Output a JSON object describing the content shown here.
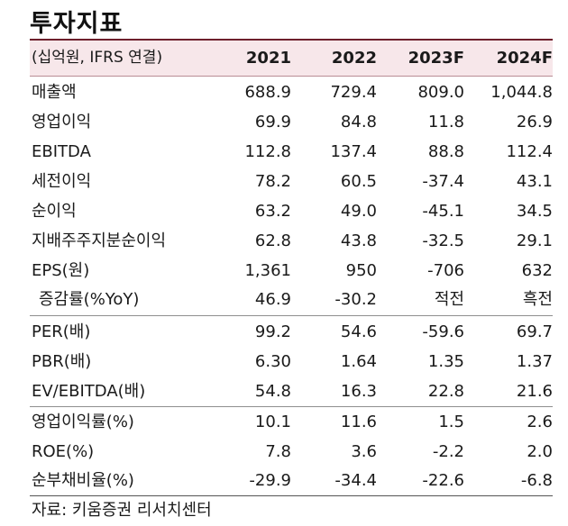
{
  "title": "투자지표",
  "colors": {
    "title_rule": "#6e1f2c",
    "header_background": "#f7e7ea"
  },
  "header": {
    "unit": "(십억원, IFRS 연결)",
    "years": [
      "2021",
      "2022",
      "2023F",
      "2024F"
    ]
  },
  "rows": [
    {
      "label": "매출액",
      "values": [
        "688.9",
        "729.4",
        "809.0",
        "1,044.8"
      ]
    },
    {
      "label": "영업이익",
      "values": [
        "69.9",
        "84.8",
        "11.8",
        "26.9"
      ]
    },
    {
      "label": "EBITDA",
      "values": [
        "112.8",
        "137.4",
        "88.8",
        "112.4"
      ]
    },
    {
      "label": "세전이익",
      "values": [
        "78.2",
        "60.5",
        "-37.4",
        "43.1"
      ]
    },
    {
      "label": "순이익",
      "values": [
        "63.2",
        "49.0",
        "-45.1",
        "34.5"
      ]
    },
    {
      "label": "지배주주지분순이익",
      "values": [
        "62.8",
        "43.8",
        "-32.5",
        "29.1"
      ]
    },
    {
      "label": "EPS(원)",
      "values": [
        "1,361",
        "950",
        "-706",
        "632"
      ]
    },
    {
      "label": "증감률(%YoY)",
      "values": [
        "46.9",
        "-30.2",
        "적전",
        "흑전"
      ]
    },
    {
      "label": "PER(배)",
      "values": [
        "99.2",
        "54.6",
        "-59.6",
        "69.7"
      ]
    },
    {
      "label": "PBR(배)",
      "values": [
        "6.30",
        "1.64",
        "1.35",
        "1.37"
      ]
    },
    {
      "label": "EV/EBITDA(배)",
      "values": [
        "54.8",
        "16.3",
        "22.8",
        "21.6"
      ]
    },
    {
      "label": "영업이익률(%)",
      "values": [
        "10.1",
        "11.6",
        "1.5",
        "2.6"
      ]
    },
    {
      "label": "ROE(%)",
      "values": [
        "7.8",
        "3.6",
        "-2.2",
        "2.0"
      ]
    },
    {
      "label": "순부채비율(%)",
      "values": [
        "-29.9",
        "-34.4",
        "-22.6",
        "-6.8"
      ]
    }
  ],
  "source": "자료: 키움증권 리서치센터"
}
